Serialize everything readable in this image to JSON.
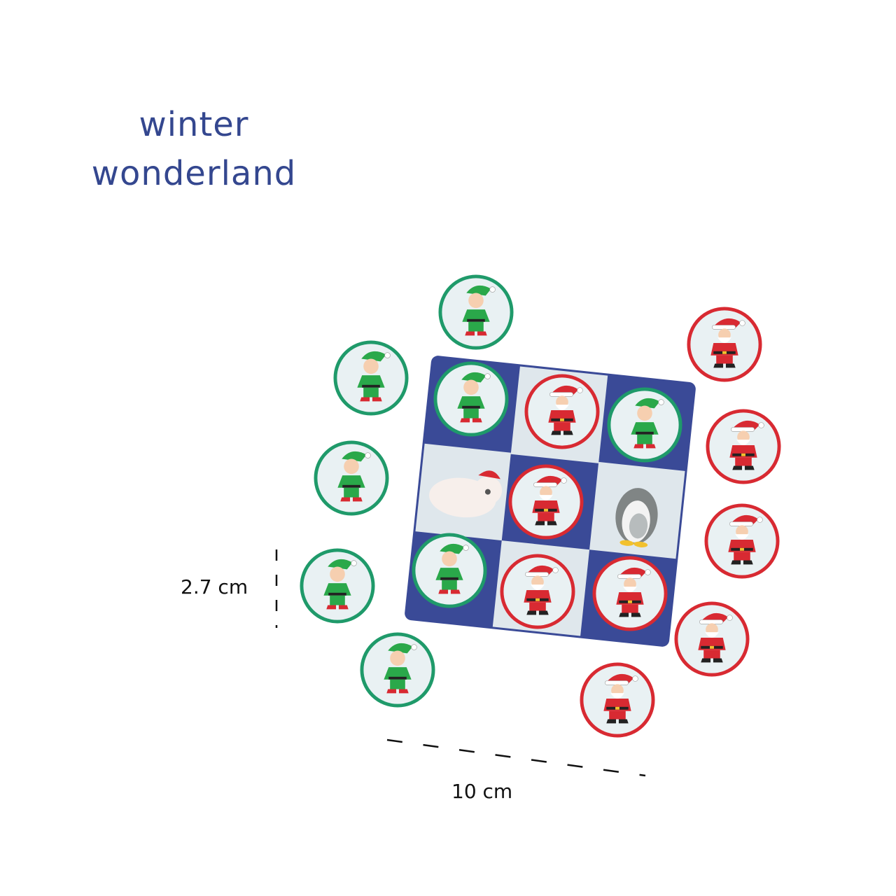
{
  "title": {
    "line1": "winter",
    "line2": "wonderland"
  },
  "dimensions": {
    "height_label": "2.7 cm",
    "width_label": "10 cm"
  },
  "colors": {
    "title": "#34478f",
    "board_dark": "#3a4a97",
    "board_light": "#dfe7ec",
    "elf_ring": "#1f9a6a",
    "santa_ring": "#d82a32"
  },
  "board": {
    "cells": [
      "elf-token",
      "santa-token",
      "elf-token",
      "polar-bear",
      "santa-token",
      "penguins",
      "elf-token",
      "santa-token",
      "santa-token"
    ]
  },
  "loose_tokens": {
    "elf_count": 5,
    "santa_count": 5
  }
}
